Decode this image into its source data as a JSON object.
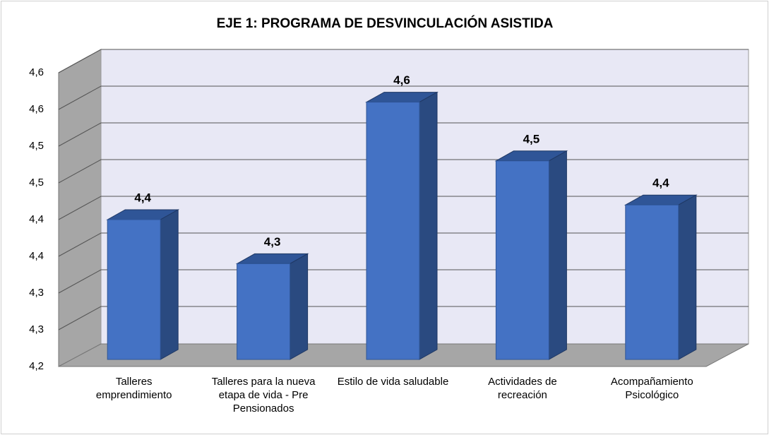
{
  "chart_data": {
    "type": "bar3d",
    "title": "EJE 1: PROGRAMA DE DESVINCULACIÓN ASISTIDA",
    "categories": [
      "Talleres emprendimiento",
      "Talleres para la nueva etapa de vida - Pre Pensionados",
      "Estilo de vida saludable",
      "Actividades de recreación",
      "Acompañamiento Psicológico"
    ],
    "values": [
      4.4,
      4.34,
      4.56,
      4.48,
      4.42
    ],
    "value_labels": [
      "4,4",
      "4,3",
      "4,6",
      "4,5",
      "4,4"
    ],
    "color": "#4472c4",
    "ylim": [
      4.2,
      4.6
    ],
    "yticks": [
      {
        "value": 4.2,
        "label": "4,2"
      },
      {
        "value": 4.25,
        "label": "4,3"
      },
      {
        "value": 4.3,
        "label": "4,3"
      },
      {
        "value": 4.35,
        "label": "4,4"
      },
      {
        "value": 4.4,
        "label": "4,4"
      },
      {
        "value": 4.45,
        "label": "4,5"
      },
      {
        "value": 4.5,
        "label": "4,5"
      },
      {
        "value": 4.55,
        "label": "4,6"
      },
      {
        "value": 4.6,
        "label": "4,6"
      }
    ],
    "grid": true
  }
}
